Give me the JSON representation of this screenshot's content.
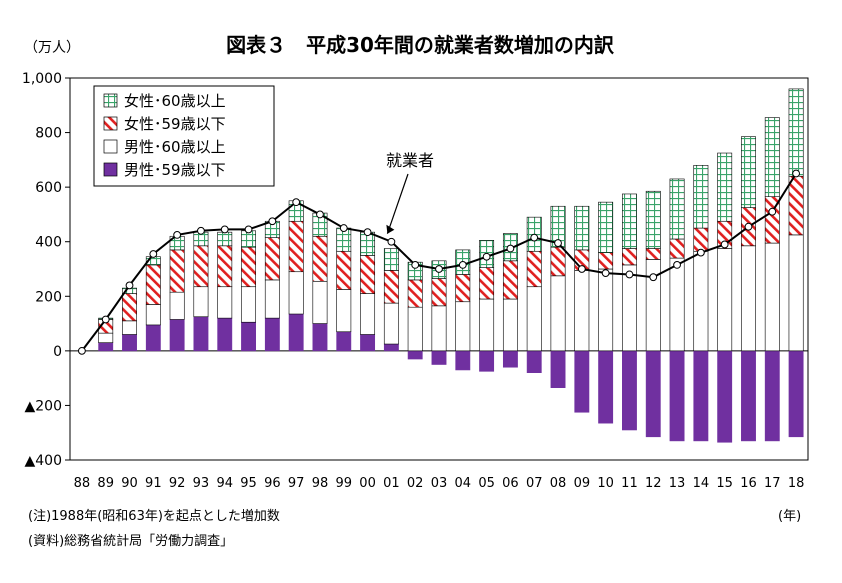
{
  "chart_data": {
    "type": "bar",
    "title": "図表３　平成30年間の就業者数増加の内訳",
    "unit_label": "（万人）",
    "x_unit": "(年)",
    "categories": [
      "88",
      "89",
      "90",
      "91",
      "92",
      "93",
      "94",
      "95",
      "96",
      "97",
      "98",
      "99",
      "00",
      "01",
      "02",
      "03",
      "04",
      "05",
      "06",
      "07",
      "08",
      "09",
      "10",
      "11",
      "12",
      "13",
      "14",
      "15",
      "16",
      "17",
      "18"
    ],
    "ylim": [
      -400,
      1000
    ],
    "y_ticks": [
      {
        "value": 1000,
        "label": "1,000"
      },
      {
        "value": 800,
        "label": "800"
      },
      {
        "value": 600,
        "label": "600"
      },
      {
        "value": 400,
        "label": "400"
      },
      {
        "value": 200,
        "label": "200"
      },
      {
        "value": 0,
        "label": "0"
      },
      {
        "value": -200,
        "label": "▲200"
      },
      {
        "value": -400,
        "label": "▲400"
      }
    ],
    "stacked": true,
    "legend_position": "top-left",
    "series": [
      {
        "name": "女性･60歳以上",
        "color": "#3aa36a",
        "pattern": "grid",
        "values": [
          0,
          5,
          20,
          30,
          50,
          50,
          50,
          60,
          60,
          75,
          85,
          85,
          85,
          80,
          65,
          65,
          90,
          100,
          100,
          125,
          150,
          160,
          185,
          200,
          210,
          220,
          230,
          250,
          260,
          290,
          320
        ]
      },
      {
        "name": "女性･59歳以下",
        "color": "#e02020",
        "pattern": "hatch",
        "values": [
          0,
          50,
          100,
          145,
          155,
          150,
          150,
          145,
          155,
          185,
          165,
          140,
          140,
          120,
          100,
          100,
          100,
          115,
          140,
          130,
          105,
          75,
          60,
          60,
          40,
          70,
          85,
          100,
          140,
          170,
          215
        ]
      },
      {
        "name": "男性･60歳以上",
        "color": "#ffffff",
        "pattern": "solid",
        "values": [
          0,
          35,
          50,
          75,
          100,
          110,
          115,
          130,
          140,
          155,
          155,
          155,
          150,
          150,
          160,
          165,
          180,
          190,
          190,
          235,
          275,
          295,
          300,
          315,
          335,
          340,
          365,
          375,
          385,
          395,
          425
        ]
      },
      {
        "name": "男性･59歳以下",
        "color": "#7030a0",
        "pattern": "solid",
        "values": [
          0,
          30,
          60,
          95,
          115,
          125,
          120,
          105,
          120,
          135,
          100,
          70,
          60,
          25,
          -30,
          -50,
          -70,
          -75,
          -60,
          -80,
          -135,
          -225,
          -265,
          -290,
          -315,
          -330,
          -330,
          -335,
          -330,
          -330,
          -315
        ]
      }
    ],
    "line": {
      "name": "就業者",
      "values": [
        0,
        115,
        240,
        355,
        425,
        440,
        445,
        445,
        475,
        545,
        500,
        450,
        435,
        400,
        315,
        300,
        315,
        345,
        375,
        415,
        395,
        300,
        285,
        280,
        270,
        315,
        360,
        390,
        455,
        510,
        650
      ]
    },
    "annotation": "就業者",
    "notes": [
      "(注)1988年(昭和63年)を起点とした増加数",
      "(資料)総務省統計局「労働力調査」"
    ]
  }
}
